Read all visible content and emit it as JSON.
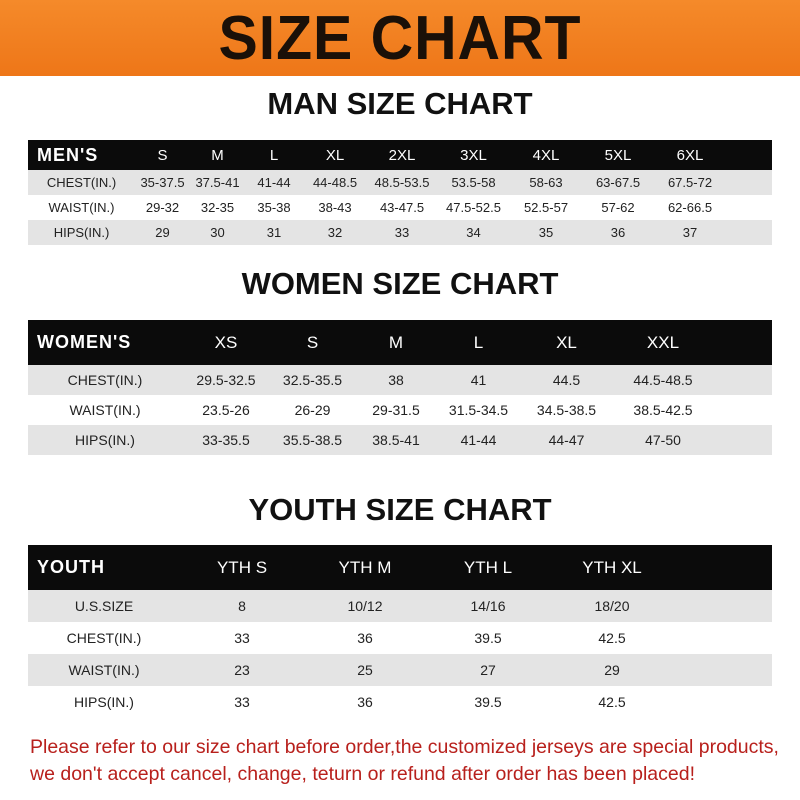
{
  "banner": {
    "title": "SIZE CHART",
    "color": "#f07a1a"
  },
  "men": {
    "title": "MAN SIZE CHART",
    "header": [
      "MEN'S",
      "S",
      "M",
      "L",
      "XL",
      "2XL",
      "3XL",
      "4XL",
      "5XL",
      "6XL"
    ],
    "rows": [
      [
        "CHEST(IN.)",
        "35-37.5",
        "37.5-41",
        "41-44",
        "44-48.5",
        "48.5-53.5",
        "53.5-58",
        "58-63",
        "63-67.5",
        "67.5-72"
      ],
      [
        "WAIST(IN.)",
        "29-32",
        "32-35",
        "35-38",
        "38-43",
        "43-47.5",
        "47.5-52.5",
        "52.5-57",
        "57-62",
        "62-66.5"
      ],
      [
        "HIPS(IN.)",
        "29",
        "30",
        "31",
        "32",
        "33",
        "34",
        "35",
        "36",
        "37"
      ]
    ]
  },
  "women": {
    "title": "WOMEN SIZE CHART",
    "header": [
      "WOMEN'S",
      "XS",
      "S",
      "M",
      "L",
      "XL",
      "XXL"
    ],
    "rows": [
      [
        "CHEST(IN.)",
        "29.5-32.5",
        "32.5-35.5",
        "38",
        "41",
        "44.5",
        "44.5-48.5"
      ],
      [
        "WAIST(IN.)",
        "23.5-26",
        "26-29",
        "29-31.5",
        "31.5-34.5",
        "34.5-38.5",
        "38.5-42.5"
      ],
      [
        "HIPS(IN.)",
        "33-35.5",
        "35.5-38.5",
        "38.5-41",
        "41-44",
        "44-47",
        "47-50"
      ]
    ]
  },
  "youth": {
    "title": "YOUTH SIZE CHART",
    "header": [
      "YOUTH",
      "YTH S",
      "YTH M",
      "YTH L",
      "YTH XL"
    ],
    "rows": [
      [
        "U.S.SIZE",
        "8",
        "10/12",
        "14/16",
        "18/20"
      ],
      [
        "CHEST(IN.)",
        "33",
        "36",
        "39.5",
        "42.5"
      ],
      [
        "WAIST(IN.)",
        "23",
        "25",
        "27",
        "29"
      ],
      [
        "HIPS(IN.)",
        "33",
        "36",
        "39.5",
        "42.5"
      ]
    ]
  },
  "note": {
    "line1": "Please refer to our size chart before order,the customized jerseys are special products,",
    "line2": "we don't accept cancel, change, teturn or refund after order has been placed!",
    "color": "#b8201c"
  }
}
